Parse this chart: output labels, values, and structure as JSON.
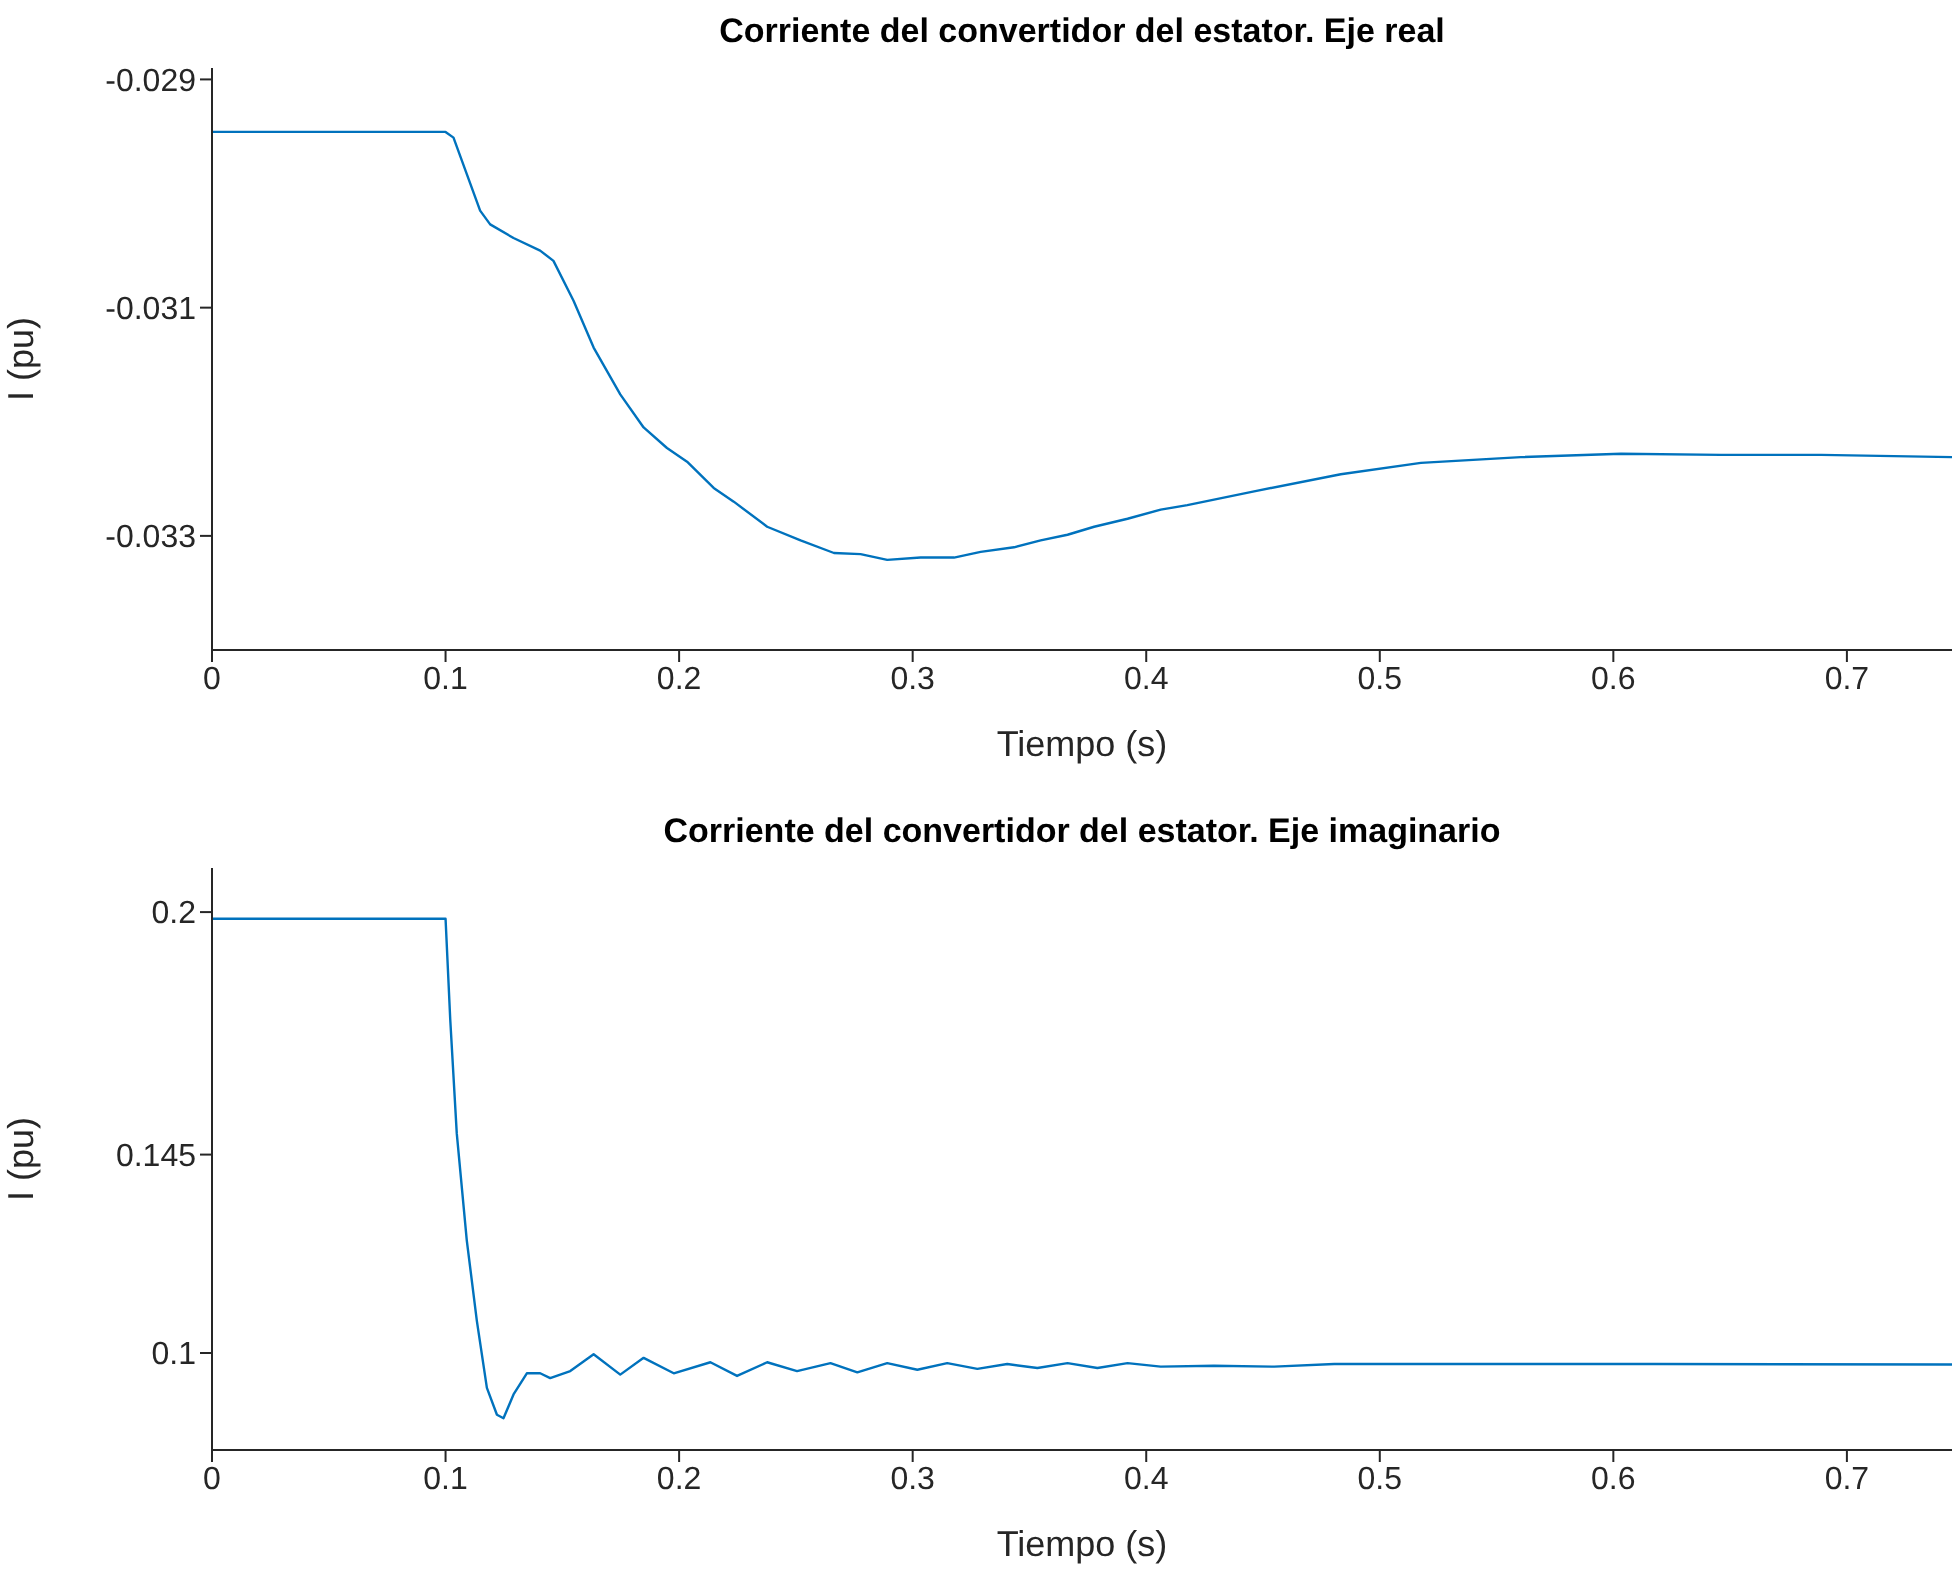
{
  "chart_data": [
    {
      "type": "line",
      "title": "Corriente del convertidor del estator. Eje real",
      "xlabel": "Tiempo (s)",
      "ylabel": "I (pu)",
      "x": [
        0,
        0.1,
        0.1034,
        0.1091,
        0.1148,
        0.1191,
        0.1291,
        0.1405,
        0.1462,
        0.1548,
        0.1634,
        0.1748,
        0.1848,
        0.1948,
        0.2034,
        0.2148,
        0.2234,
        0.2377,
        0.252,
        0.2663,
        0.2777,
        0.2891,
        0.3034,
        0.3177,
        0.3291,
        0.3434,
        0.3548,
        0.3663,
        0.3777,
        0.392,
        0.4062,
        0.4176,
        0.4462,
        0.4833,
        0.5176,
        0.5604,
        0.6033,
        0.6461,
        0.689,
        0.745
      ],
      "series": [
        {
          "color": "#0072bd",
          "values": [
            -0.02946,
            -0.02946,
            -0.02951,
            -0.02983,
            -0.03015,
            -0.03027,
            -0.03039,
            -0.0305,
            -0.03059,
            -0.03094,
            -0.03135,
            -0.03176,
            -0.03205,
            -0.03223,
            -0.03235,
            -0.03258,
            -0.0327,
            -0.03292,
            -0.03304,
            -0.03315,
            -0.03316,
            -0.03321,
            -0.03319,
            -0.03319,
            -0.03314,
            -0.0331,
            -0.03304,
            -0.03299,
            -0.03292,
            -0.03285,
            -0.03277,
            -0.03273,
            -0.03261,
            -0.03246,
            -0.03236,
            -0.03231,
            -0.03228,
            -0.03229,
            -0.03229,
            -0.03231
          ]
        }
      ],
      "xlim": [
        0,
        0.745
      ],
      "ylim": [
        -0.034,
        -0.0289
      ],
      "xticks": [
        0,
        0.1,
        0.2,
        0.3,
        0.4,
        0.5,
        0.6,
        0.7
      ],
      "yticks": [
        -0.033,
        -0.031,
        -0.029
      ]
    },
    {
      "type": "line",
      "title": "Corriente del convertidor del estator. Eje imaginario",
      "xlabel": "Tiempo (s)",
      "ylabel": "I (pu)",
      "x": [
        0,
        0.1,
        0.102,
        0.1048,
        0.1091,
        0.1134,
        0.1177,
        0.122,
        0.1248,
        0.1291,
        0.1348,
        0.1405,
        0.1448,
        0.1534,
        0.1634,
        0.1748,
        0.1848,
        0.1977,
        0.2134,
        0.2248,
        0.2377,
        0.2505,
        0.2648,
        0.2763,
        0.2891,
        0.302,
        0.3148,
        0.3277,
        0.3405,
        0.3534,
        0.3663,
        0.3791,
        0.392,
        0.4062,
        0.429,
        0.4548,
        0.4805,
        0.532,
        0.6176,
        0.745
      ],
      "series": [
        {
          "color": "#0072bd",
          "values": [
            0.1985,
            0.1985,
            0.1757,
            0.1498,
            0.1255,
            0.1073,
            0.0921,
            0.086,
            0.0852,
            0.0906,
            0.0954,
            0.0954,
            0.0943,
            0.0959,
            0.0997,
            0.0951,
            0.0989,
            0.0954,
            0.0979,
            0.0948,
            0.0979,
            0.0959,
            0.0977,
            0.0956,
            0.0977,
            0.0962,
            0.0977,
            0.0964,
            0.0975,
            0.0966,
            0.0977,
            0.0966,
            0.0977,
            0.0969,
            0.0971,
            0.0969,
            0.0975,
            0.0975,
            0.0975,
            0.0974
          ]
        }
      ],
      "xlim": [
        0,
        0.745
      ],
      "ylim": [
        0.078,
        0.21
      ],
      "xticks": [
        0,
        0.1,
        0.2,
        0.3,
        0.4,
        0.5,
        0.6,
        0.7
      ],
      "yticks": [
        0.1,
        0.145,
        0.2
      ]
    }
  ]
}
